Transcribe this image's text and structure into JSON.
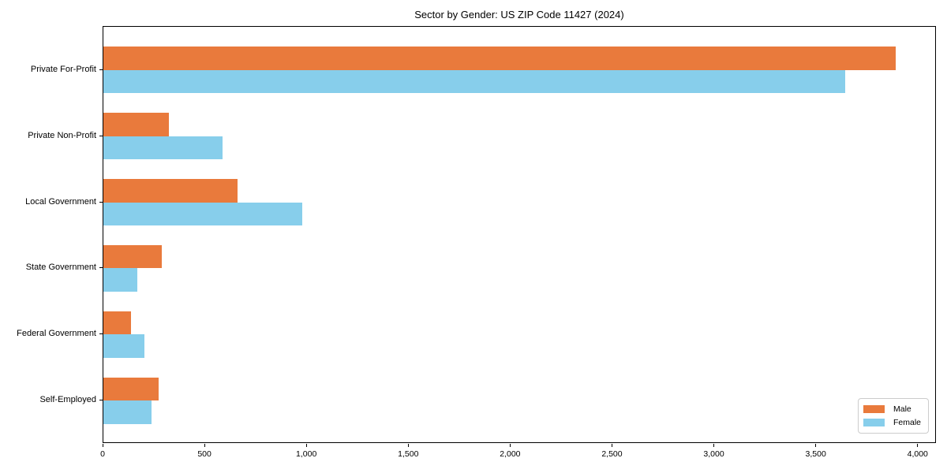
{
  "chart_data": {
    "type": "bar",
    "orientation": "horizontal",
    "title": "Sector by Gender: US ZIP Code 11427 (2024)",
    "categories": [
      "Private For-Profit",
      "Private Non-Profit",
      "Local Government",
      "State Government",
      "Federal Government",
      "Self-Employed"
    ],
    "series": [
      {
        "name": "Male",
        "color": "#e97a3c",
        "values": [
          3890,
          320,
          660,
          285,
          135,
          270
        ]
      },
      {
        "name": "Female",
        "color": "#87ceeb",
        "values": [
          3640,
          585,
          975,
          165,
          200,
          235
        ]
      }
    ],
    "xlabel": "",
    "ylabel": "",
    "xlim": [
      0,
      4090
    ],
    "x_ticks": [
      0,
      500,
      1000,
      1500,
      2000,
      2500,
      3000,
      3500,
      4000
    ],
    "x_tick_labels": [
      "0",
      "500",
      "1,000",
      "1,500",
      "2,000",
      "2,500",
      "3,000",
      "3,500",
      "4,000"
    ],
    "grid": false,
    "legend": {
      "position": "lower right",
      "entries": [
        "Male",
        "Female"
      ]
    }
  }
}
